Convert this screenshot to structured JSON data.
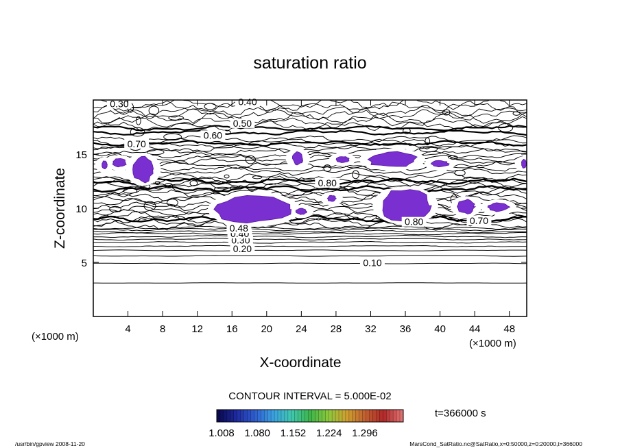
{
  "chart_data": {
    "type": "contour",
    "title": "saturation ratio",
    "xlabel": "X-coordinate",
    "ylabel": "Z-coordinate",
    "x_unit_left": "(×1000 m)",
    "x_unit_right": "(×1000 m)",
    "xlim": [
      0,
      50
    ],
    "ylim": [
      0,
      20
    ],
    "x_ticks": [
      4,
      8,
      12,
      16,
      20,
      24,
      28,
      32,
      36,
      40,
      44,
      48
    ],
    "y_ticks": [
      5,
      10,
      15
    ],
    "contour_interval_text": "CONTOUR INTERVAL = 5.000E-02",
    "contour_labels": [
      {
        "text": "0.30",
        "x": 3.0,
        "z": 19.4
      },
      {
        "text": "0.40",
        "x": 17.8,
        "z": 19.6
      },
      {
        "text": "0.50",
        "x": 17.2,
        "z": 17.6
      },
      {
        "text": "0.60",
        "x": 13.8,
        "z": 16.5
      },
      {
        "text": "0.70",
        "x": 5.0,
        "z": 15.7
      },
      {
        "text": "0.10",
        "x": 32.2,
        "z": 4.7
      },
      {
        "text": "0.20",
        "x": 17.2,
        "z": 6.0
      },
      {
        "text": "0.30",
        "x": 17.0,
        "z": 6.8
      },
      {
        "text": "0.40",
        "x": 16.9,
        "z": 7.4
      },
      {
        "text": "0.48",
        "x": 16.8,
        "z": 7.9
      },
      {
        "text": "0.80",
        "x": 27.0,
        "z": 12.1
      },
      {
        "text": "0.80",
        "x": 37.0,
        "z": 8.5
      },
      {
        "text": "0.70",
        "x": 44.5,
        "z": 8.6
      }
    ],
    "supersaturated_regions": [
      {
        "x": [
          1.0,
          1.6
        ],
        "z": [
          13.6,
          14.4
        ]
      },
      {
        "x": [
          2.2,
          3.8
        ],
        "z": [
          13.8,
          14.6
        ]
      },
      {
        "x": [
          4.5,
          7.0
        ],
        "z": [
          12.4,
          14.8
        ]
      },
      {
        "x": [
          14.0,
          23.0
        ],
        "z": [
          8.6,
          11.2
        ]
      },
      {
        "x": [
          23.4,
          24.6
        ],
        "z": [
          9.4,
          10.0
        ]
      },
      {
        "x": [
          27.0,
          28.0
        ],
        "z": [
          10.6,
          11.2
        ]
      },
      {
        "x": [
          23.0,
          24.2
        ],
        "z": [
          14.0,
          15.2
        ]
      },
      {
        "x": [
          28.0,
          29.5
        ],
        "z": [
          14.2,
          14.8
        ]
      },
      {
        "x": [
          31.5,
          37.5
        ],
        "z": [
          13.8,
          15.2
        ]
      },
      {
        "x": [
          39.0,
          41.0
        ],
        "z": [
          13.8,
          14.4
        ]
      },
      {
        "x": [
          33.0,
          39.0
        ],
        "z": [
          8.8,
          11.7
        ]
      },
      {
        "x": [
          42.0,
          44.0
        ],
        "z": [
          9.5,
          10.8
        ]
      },
      {
        "x": [
          45.5,
          48.0
        ],
        "z": [
          9.7,
          10.5
        ]
      },
      {
        "x": [
          49.4,
          50.0
        ],
        "z": [
          13.7,
          14.5
        ]
      }
    ],
    "colorbar": {
      "tick_labels": [
        "1.008",
        "1.080",
        "1.152",
        "1.224",
        "1.296"
      ],
      "colors": [
        "#0a0a50",
        "#1e2aa0",
        "#2f5fd0",
        "#3aa0e0",
        "#40c8b0",
        "#3cb44a",
        "#8cc83c",
        "#d0a030",
        "#c06030",
        "#b02828",
        "#e07070"
      ]
    },
    "time_label": "t=366000 s",
    "region_color": "#7a2fd0",
    "grid": false,
    "legend": "none"
  },
  "footer": {
    "left": "/usr/bin/gpview   2008-11-20",
    "right": "MarsCond_SatRatio.nc@SatRatio,x=0:50000,z=0:20000,t=366000"
  }
}
